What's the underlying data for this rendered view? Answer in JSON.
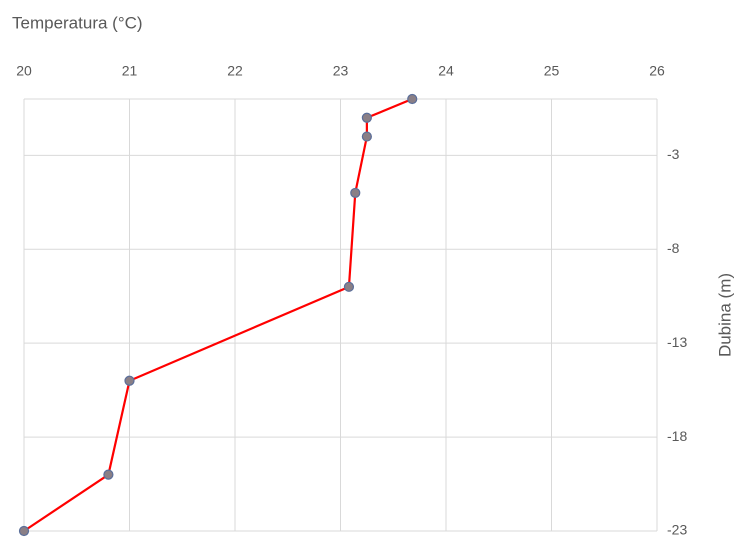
{
  "chart_data": {
    "type": "line",
    "x_label": "Temperatura (°C)",
    "y_label": "Dubina (m)",
    "x": [
      23.68,
      23.25,
      23.25,
      23.14,
      23.08,
      21.0,
      20.8,
      20.0
    ],
    "series": [
      {
        "color": "#ff0000",
        "marker_color": "#8a7f86",
        "marker_edge": "#5a6e9a",
        "values": [
          0,
          -1,
          -2,
          -5,
          -10,
          -15,
          -20,
          -23
        ]
      }
    ],
    "xlim": [
      20,
      26
    ],
    "xticks": [
      20,
      21,
      22,
      23,
      24,
      25,
      26
    ],
    "ylim": [
      -23,
      0
    ],
    "yticks": [
      -3,
      -8,
      -13,
      -18,
      -23
    ],
    "grid": true
  }
}
